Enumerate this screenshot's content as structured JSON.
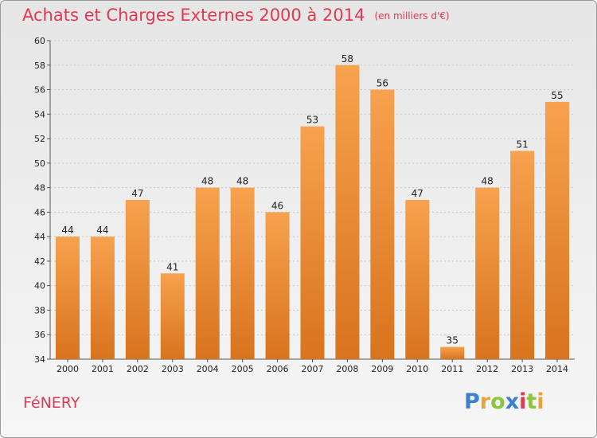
{
  "header": {
    "title": "Achats et Charges Externes 2000 à 2014",
    "unit": "(en milliers d'€)"
  },
  "footer": {
    "commune": "FéNERY",
    "logo_text": "Proxiti"
  },
  "colors": {
    "bar_top": "#f6a24e",
    "bar_bottom": "#d9731e",
    "title": "#e03a52"
  },
  "chart_data": {
    "type": "bar",
    "title": "Achats et Charges Externes 2000 à 2014",
    "categories": [
      "2000",
      "2001",
      "2002",
      "2003",
      "2004",
      "2005",
      "2006",
      "2007",
      "2008",
      "2009",
      "2010",
      "2011",
      "2012",
      "2013",
      "2014"
    ],
    "values": [
      44,
      44,
      47,
      41,
      48,
      48,
      46,
      53,
      58,
      56,
      47,
      35,
      48,
      51,
      55
    ],
    "ylim": [
      34,
      60
    ],
    "yticks": [
      34,
      36,
      38,
      40,
      42,
      44,
      46,
      48,
      50,
      52,
      54,
      56,
      58,
      60
    ],
    "grid": true,
    "legend": "none"
  }
}
